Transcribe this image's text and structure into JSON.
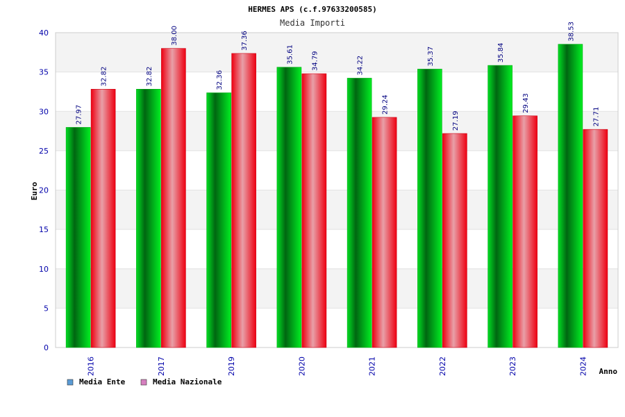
{
  "chart_data": {
    "type": "bar",
    "title": "HERMES APS (c.f.97633200585)",
    "subtitle": "Media Importi",
    "xlabel": "Anno",
    "ylabel": "Euro",
    "ylim": [
      0,
      40
    ],
    "yticks": [
      0,
      5,
      10,
      15,
      20,
      25,
      30,
      35,
      40
    ],
    "categories": [
      "2016",
      "2017",
      "2019",
      "2020",
      "2021",
      "2022",
      "2023",
      "2024"
    ],
    "series": [
      {
        "name": "Media Ente",
        "values": [
          27.97,
          32.82,
          32.36,
          35.61,
          34.22,
          35.37,
          35.84,
          38.53
        ],
        "labels": [
          "27.97",
          "32.82",
          "32.36",
          "35.61",
          "34.22",
          "35.37",
          "35.84",
          "38.53"
        ],
        "color": "#00cc22",
        "legend_color": "#5b9bd5"
      },
      {
        "name": "Media Nazionale",
        "values": [
          32.82,
          38.0,
          37.36,
          34.79,
          29.24,
          27.19,
          29.43,
          27.71
        ],
        "labels": [
          "32.82",
          "38.00",
          "37.36",
          "34.79",
          "29.24",
          "27.19",
          "29.43",
          "27.71"
        ],
        "color": "#ee1122",
        "legend_color": "#d67fbf"
      }
    ],
    "grid": true,
    "legend": "bottom-left"
  }
}
